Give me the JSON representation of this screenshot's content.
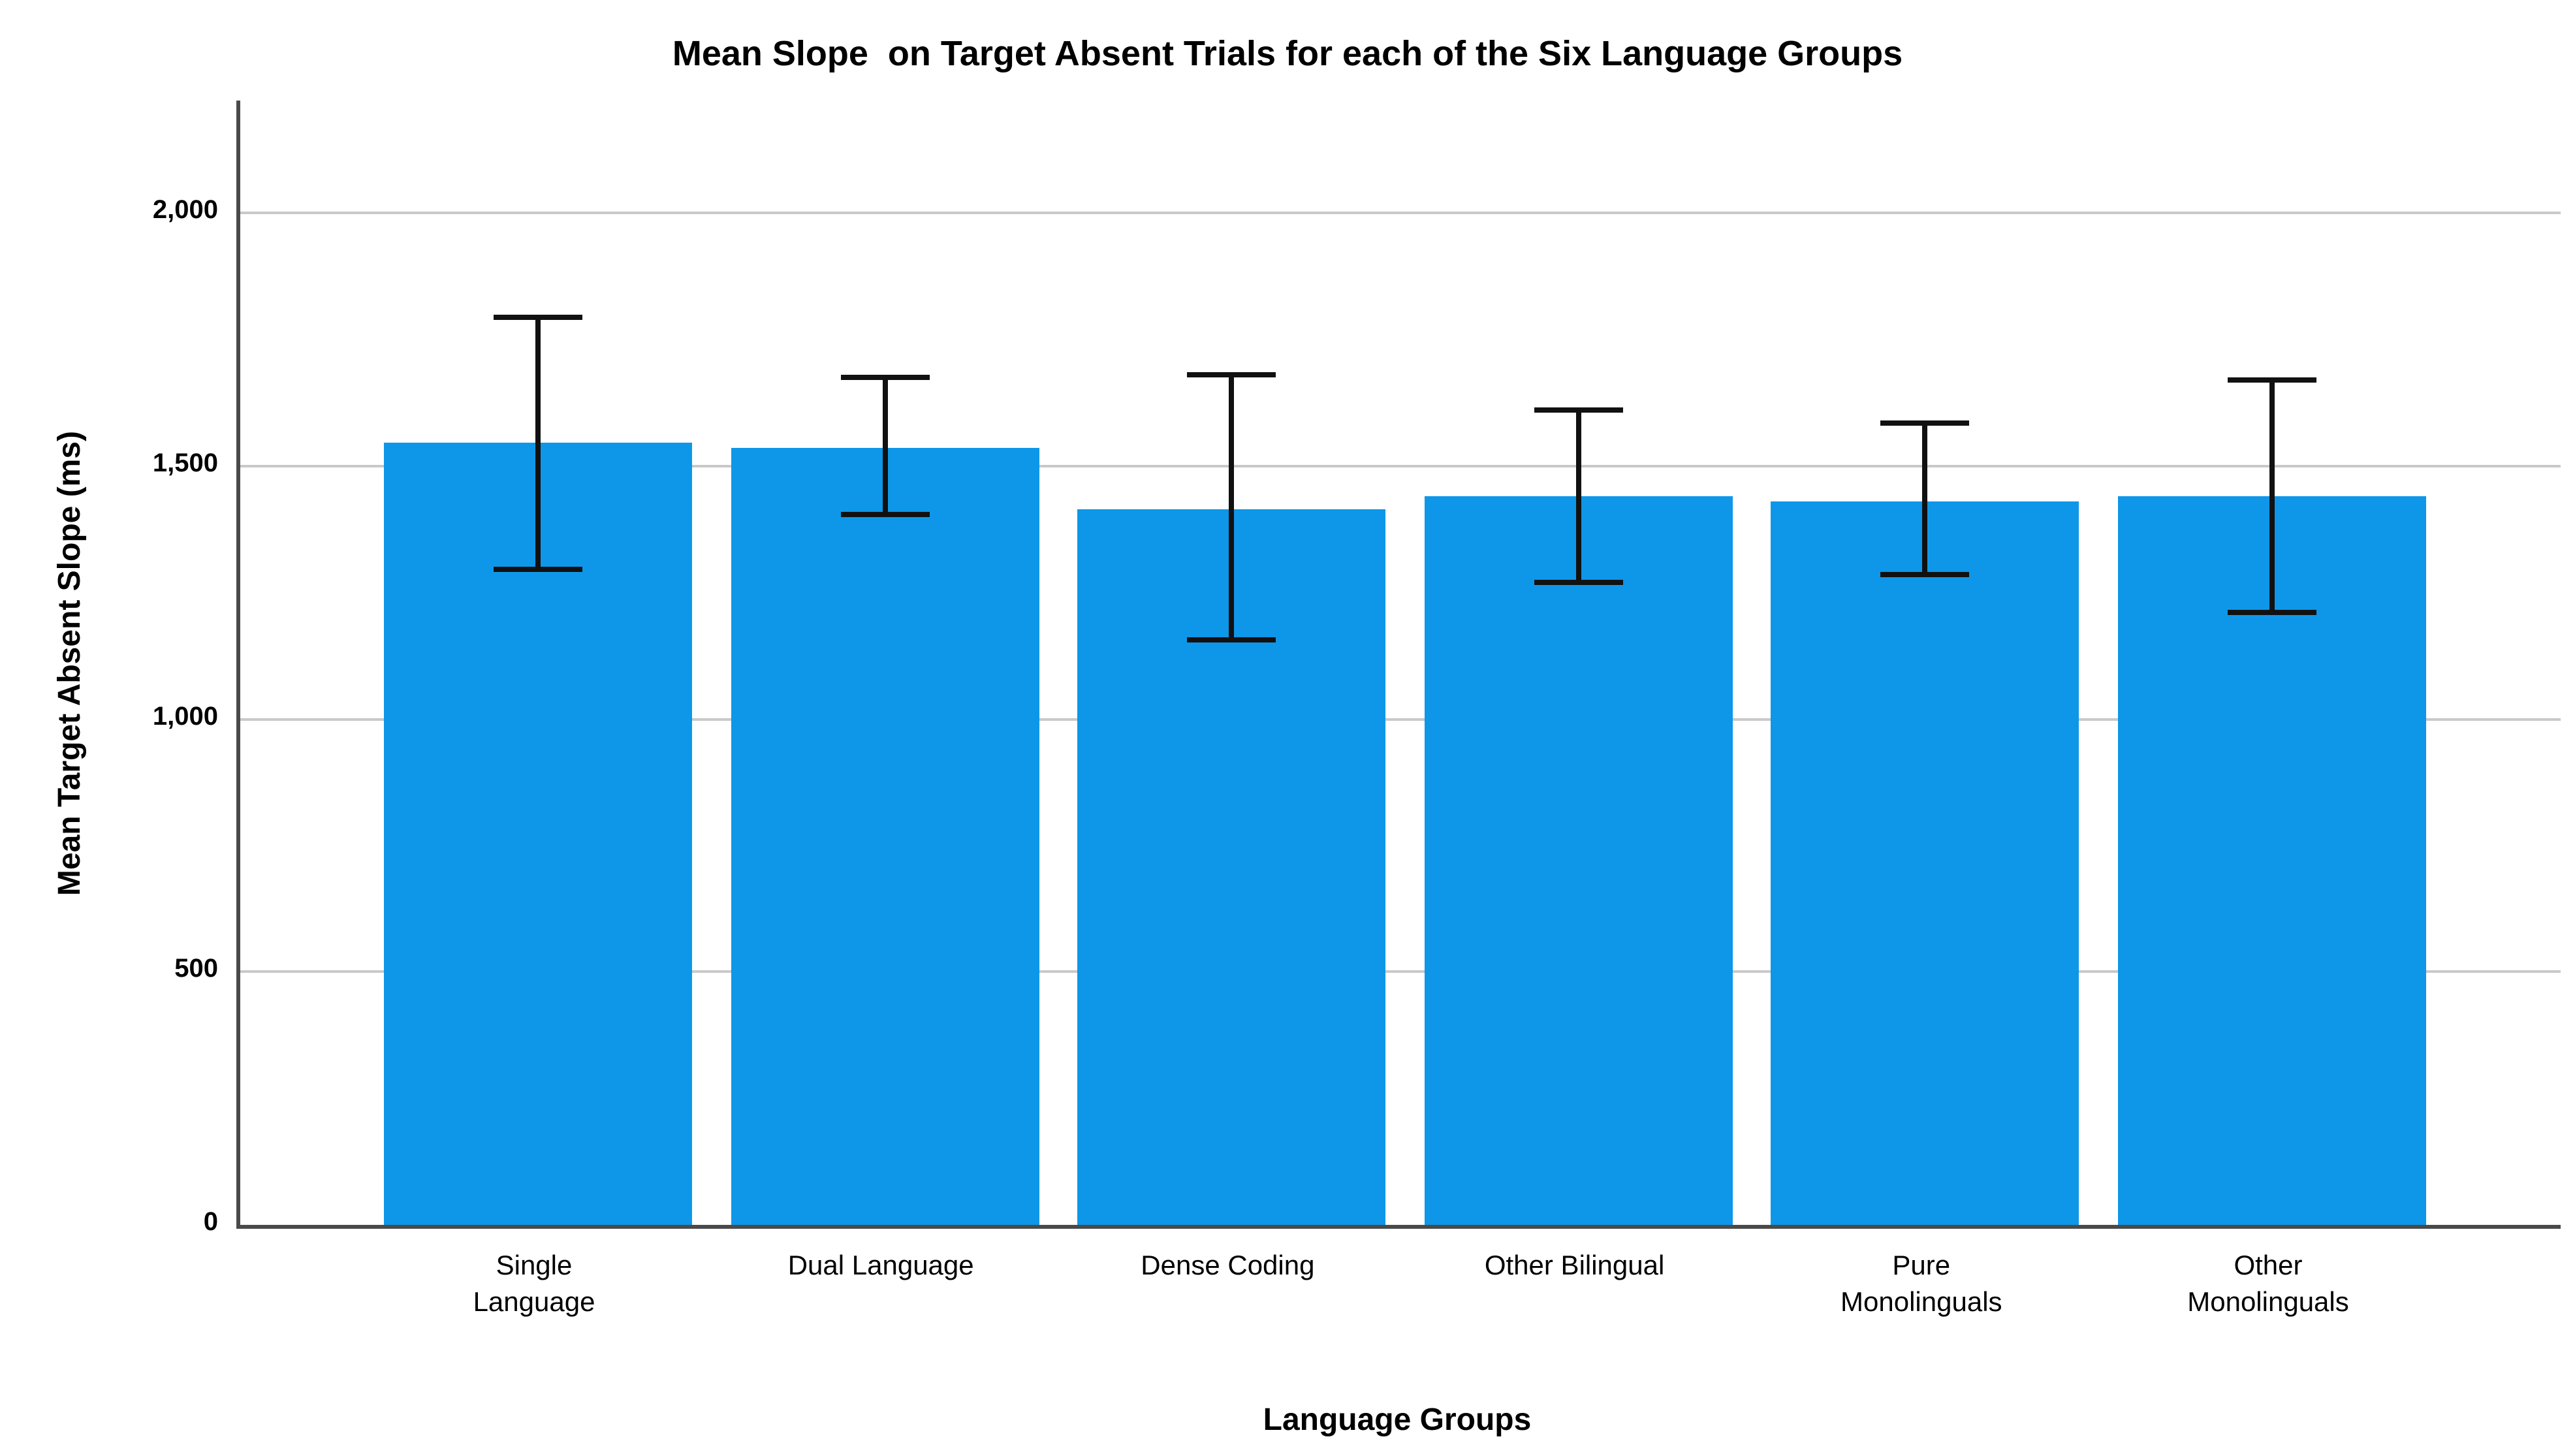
{
  "chart_data": {
    "type": "bar",
    "title": "Mean Slope  on Target Absent Trials for each of the Six Language Groups",
    "xlabel": "Language Groups",
    "ylabel": "Mean Target Absent Slope (ms)",
    "categories": [
      "Single Language",
      "Dual Language",
      "Dense Coding",
      "Other Bilingual",
      "Pure Monolinguals",
      "Other Monolinguals"
    ],
    "category_lines": [
      [
        "Single",
        "Language"
      ],
      [
        "Dual Language"
      ],
      [
        "Dense Coding"
      ],
      [
        "Other Bilingual"
      ],
      [
        "Pure",
        "Monolinguals"
      ],
      [
        "Other",
        "Monolinguals"
      ]
    ],
    "series": [
      {
        "name": "Mean Target Absent Slope (ms)",
        "values": [
          1545,
          1535,
          1415,
          1440,
          1430,
          1440
        ],
        "error_low": [
          1290,
          1400,
          1150,
          1265,
          1280,
          1205
        ],
        "error_high": [
          1800,
          1680,
          1685,
          1615,
          1590,
          1675
        ]
      }
    ],
    "ylim": [
      0,
      2222
    ],
    "yticks": [
      0,
      500,
      1000,
      1500,
      2000
    ],
    "ytick_labels": [
      "0",
      "500",
      "1,000",
      "1,500",
      "2,000"
    ],
    "grid": "horizontal gridlines at labeled ticks",
    "legend": "none",
    "colors": {
      "bar_fill": "#0E97E8",
      "gridline": "#C9C9C9",
      "axis_line": "#4A4A4A",
      "error_bar": "#111111",
      "text": "#000000",
      "background": "#FFFFFF"
    }
  }
}
